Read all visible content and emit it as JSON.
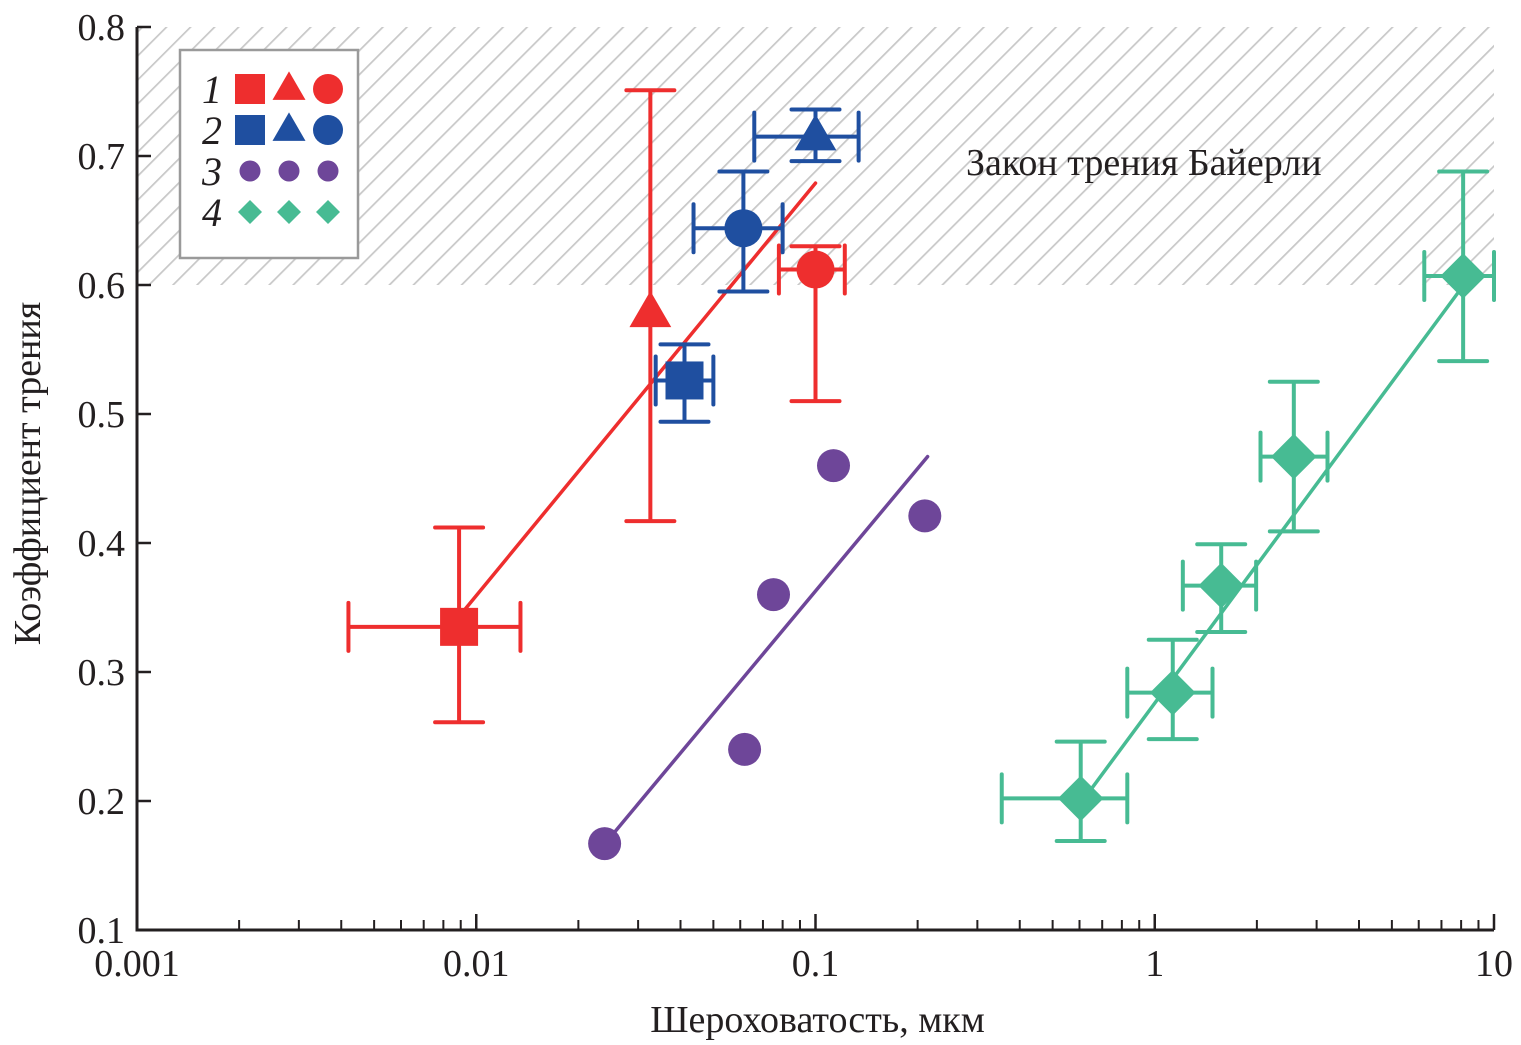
{
  "chart_data": {
    "type": "scatter",
    "title": "",
    "xlabel": "Шероховатость, мкм",
    "ylabel": "Коэффициент трения",
    "xscale": "log",
    "xlim": [
      0.001,
      10
    ],
    "ylim": [
      0.1,
      0.8
    ],
    "xticks": [
      0.001,
      0.01,
      0.1,
      1,
      10
    ],
    "xtick_labels": [
      "0.001",
      "0.01",
      "0.1",
      "1",
      "10"
    ],
    "yticks": [
      0.1,
      0.2,
      0.3,
      0.4,
      0.5,
      0.6,
      0.7,
      0.8
    ],
    "ytick_labels": [
      "0.1",
      "0.2",
      "0.3",
      "0.4",
      "0.5",
      "0.6",
      "0.7",
      "0.8"
    ],
    "grid": false,
    "shaded_region": {
      "label": "Закон трения Байерли",
      "y_range": [
        0.6,
        0.8
      ],
      "pattern": "hatched"
    },
    "legend": {
      "position": "top-left",
      "entries": [
        {
          "label": "1",
          "markers": [
            "square",
            "triangle",
            "circle"
          ],
          "color": "#ee2e2e"
        },
        {
          "label": "2",
          "markers": [
            "square",
            "triangle",
            "circle"
          ],
          "color": "#1f4fa0"
        },
        {
          "label": "3",
          "markers": [
            "circle",
            "circle",
            "circle"
          ],
          "color": "#6e4699"
        },
        {
          "label": "4",
          "markers": [
            "diamond",
            "diamond",
            "diamond"
          ],
          "color": "#47bb93"
        }
      ]
    },
    "series": [
      {
        "name": "1",
        "color": "#ee2e2e",
        "points": [
          {
            "marker": "square",
            "x": 0.0089,
            "y": 0.335,
            "xerr": [
              0.0042,
              0.0135
            ],
            "yerr": [
              0.261,
              0.412
            ]
          },
          {
            "marker": "triangle",
            "x": 0.0326,
            "y": 0.578,
            "xerr": null,
            "yerr": [
              0.417,
              0.751
            ]
          },
          {
            "marker": "circle",
            "x": 0.1,
            "y": 0.612,
            "xerr": [
              0.078,
              0.122
            ],
            "yerr": [
              0.51,
              0.63
            ]
          }
        ],
        "fit": {
          "x": [
            0.0089,
            0.1
          ],
          "y": [
            0.343,
            0.679
          ]
        }
      },
      {
        "name": "2",
        "color": "#1f4fa0",
        "points": [
          {
            "marker": "square",
            "x": 0.0411,
            "y": 0.526,
            "xerr": [
              0.0338,
              0.05
            ],
            "yerr": [
              0.494,
              0.554
            ]
          },
          {
            "marker": "triangle",
            "x": 0.1,
            "y": 0.715,
            "xerr": [
              0.066,
              0.134
            ],
            "yerr": [
              0.696,
              0.736
            ]
          },
          {
            "marker": "circle",
            "x": 0.0613,
            "y": 0.644,
            "xerr": [
              0.0437,
              0.08
            ],
            "yerr": [
              0.595,
              0.688
            ]
          }
        ],
        "fit": null
      },
      {
        "name": "3",
        "color": "#6e4699",
        "points": [
          {
            "marker": "circle",
            "x": 0.0239,
            "y": 0.167,
            "xerr": null,
            "yerr": null
          },
          {
            "marker": "circle",
            "x": 0.0618,
            "y": 0.24,
            "xerr": null,
            "yerr": null
          },
          {
            "marker": "circle",
            "x": 0.0752,
            "y": 0.36,
            "xerr": null,
            "yerr": null
          },
          {
            "marker": "circle",
            "x": 0.113,
            "y": 0.46,
            "xerr": null,
            "yerr": null
          },
          {
            "marker": "circle",
            "x": 0.21,
            "y": 0.421,
            "xerr": null,
            "yerr": null
          }
        ],
        "fit": {
          "x": [
            0.0245,
            0.214
          ],
          "y": [
            0.17,
            0.467
          ]
        }
      },
      {
        "name": "4",
        "color": "#47bb93",
        "points": [
          {
            "marker": "diamond",
            "x": 0.605,
            "y": 0.202,
            "xerr": [
              0.354,
              0.83
            ],
            "yerr": [
              0.169,
              0.246
            ]
          },
          {
            "marker": "diamond",
            "x": 1.13,
            "y": 0.284,
            "xerr": [
              0.83,
              1.48
            ],
            "yerr": [
              0.248,
              0.325
            ]
          },
          {
            "marker": "diamond",
            "x": 1.57,
            "y": 0.367,
            "xerr": [
              1.21,
              1.99
            ],
            "yerr": [
              0.331,
              0.399
            ]
          },
          {
            "marker": "diamond",
            "x": 2.57,
            "y": 0.467,
            "xerr": [
              2.05,
              3.23
            ],
            "yerr": [
              0.409,
              0.525
            ]
          },
          {
            "marker": "diamond",
            "x": 8.11,
            "y": 0.607,
            "xerr": [
              6.23,
              10.0
            ],
            "yerr": [
              0.541,
              0.688
            ]
          }
        ],
        "fit": {
          "x": [
            0.62,
            8.8
          ],
          "y": [
            0.202,
            0.612
          ]
        }
      }
    ]
  }
}
